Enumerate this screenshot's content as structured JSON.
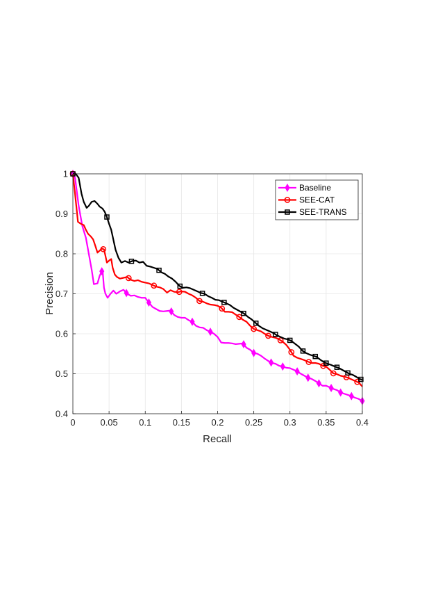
{
  "chart_data": {
    "type": "line",
    "title": "",
    "xlabel": "Recall",
    "ylabel": "Precision",
    "xlim": [
      0,
      0.4
    ],
    "ylim": [
      0.4,
      1
    ],
    "xticks": [
      0,
      0.05,
      0.1,
      0.15,
      0.2,
      0.25,
      0.3,
      0.35,
      0.4
    ],
    "xtick_labels": [
      "0",
      "0.05",
      "0.1",
      "0.15",
      "0.2",
      "0.25",
      "0.3",
      "0.35",
      "0.4"
    ],
    "yticks": [
      0.4,
      0.5,
      0.6,
      0.7,
      0.8,
      0.9,
      1
    ],
    "ytick_labels": [
      "0.4",
      "0.5",
      "0.6",
      "0.7",
      "0.8",
      "0.9",
      "1"
    ],
    "grid": true,
    "legend_position": "top-right",
    "series": [
      {
        "name": "Baseline",
        "color": "#ff00ff",
        "marker": "diamond",
        "points": [
          [
            0,
            1
          ],
          [
            0.003,
            0.99
          ],
          [
            0.008,
            0.92
          ],
          [
            0.013,
            0.87
          ],
          [
            0.018,
            0.84
          ],
          [
            0.022,
            0.8
          ],
          [
            0.026,
            0.76
          ],
          [
            0.029,
            0.724
          ],
          [
            0.034,
            0.726
          ],
          [
            0.037,
            0.745
          ],
          [
            0.041,
            0.76
          ],
          [
            0.043,
            0.715
          ],
          [
            0.045,
            0.7
          ],
          [
            0.048,
            0.69
          ],
          [
            0.052,
            0.7
          ],
          [
            0.056,
            0.708
          ],
          [
            0.06,
            0.7
          ],
          [
            0.065,
            0.706
          ],
          [
            0.07,
            0.71
          ],
          [
            0.075,
            0.7
          ],
          [
            0.08,
            0.695
          ],
          [
            0.085,
            0.696
          ],
          [
            0.09,
            0.692
          ],
          [
            0.095,
            0.69
          ],
          [
            0.1,
            0.69
          ],
          [
            0.105,
            0.678
          ],
          [
            0.11,
            0.667
          ],
          [
            0.115,
            0.662
          ],
          [
            0.12,
            0.657
          ],
          [
            0.125,
            0.656
          ],
          [
            0.13,
            0.657
          ],
          [
            0.135,
            0.658
          ],
          [
            0.14,
            0.647
          ],
          [
            0.145,
            0.642
          ],
          [
            0.15,
            0.64
          ],
          [
            0.155,
            0.64
          ],
          [
            0.16,
            0.634
          ],
          [
            0.165,
            0.63
          ],
          [
            0.17,
            0.62
          ],
          [
            0.175,
            0.616
          ],
          [
            0.18,
            0.615
          ],
          [
            0.185,
            0.609
          ],
          [
            0.19,
            0.605
          ],
          [
            0.195,
            0.6
          ],
          [
            0.2,
            0.592
          ],
          [
            0.205,
            0.578
          ],
          [
            0.21,
            0.577
          ],
          [
            0.215,
            0.577
          ],
          [
            0.22,
            0.576
          ],
          [
            0.225,
            0.574
          ],
          [
            0.23,
            0.575
          ],
          [
            0.235,
            0.576
          ],
          [
            0.24,
            0.565
          ],
          [
            0.245,
            0.56
          ],
          [
            0.25,
            0.552
          ],
          [
            0.255,
            0.55
          ],
          [
            0.26,
            0.545
          ],
          [
            0.265,
            0.538
          ],
          [
            0.27,
            0.532
          ],
          [
            0.275,
            0.527
          ],
          [
            0.28,
            0.525
          ],
          [
            0.285,
            0.52
          ],
          [
            0.29,
            0.518
          ],
          [
            0.295,
            0.515
          ],
          [
            0.3,
            0.514
          ],
          [
            0.305,
            0.51
          ],
          [
            0.31,
            0.506
          ],
          [
            0.315,
            0.5
          ],
          [
            0.32,
            0.495
          ],
          [
            0.325,
            0.49
          ],
          [
            0.33,
            0.487
          ],
          [
            0.335,
            0.482
          ],
          [
            0.34,
            0.476
          ],
          [
            0.345,
            0.47
          ],
          [
            0.35,
            0.47
          ],
          [
            0.355,
            0.466
          ],
          [
            0.36,
            0.462
          ],
          [
            0.365,
            0.459
          ],
          [
            0.37,
            0.453
          ],
          [
            0.375,
            0.45
          ],
          [
            0.38,
            0.447
          ],
          [
            0.385,
            0.444
          ],
          [
            0.39,
            0.44
          ],
          [
            0.395,
            0.437
          ],
          [
            0.4,
            0.432
          ]
        ],
        "markers_x": [
          0,
          0.04,
          0.074,
          0.105,
          0.136,
          0.165,
          0.19,
          0.236,
          0.25,
          0.274,
          0.29,
          0.31,
          0.325,
          0.34,
          0.357,
          0.37,
          0.385,
          0.4
        ]
      },
      {
        "name": "SEE-CAT",
        "color": "#ff0000",
        "marker": "circle",
        "points": [
          [
            0,
            1
          ],
          [
            0.003,
            0.95
          ],
          [
            0.007,
            0.88
          ],
          [
            0.011,
            0.875
          ],
          [
            0.015,
            0.872
          ],
          [
            0.018,
            0.86
          ],
          [
            0.021,
            0.85
          ],
          [
            0.025,
            0.843
          ],
          [
            0.028,
            0.836
          ],
          [
            0.031,
            0.82
          ],
          [
            0.034,
            0.803
          ],
          [
            0.037,
            0.808
          ],
          [
            0.04,
            0.813
          ],
          [
            0.043,
            0.811
          ],
          [
            0.045,
            0.795
          ],
          [
            0.047,
            0.778
          ],
          [
            0.05,
            0.783
          ],
          [
            0.053,
            0.787
          ],
          [
            0.055,
            0.765
          ],
          [
            0.058,
            0.748
          ],
          [
            0.061,
            0.742
          ],
          [
            0.065,
            0.738
          ],
          [
            0.07,
            0.74
          ],
          [
            0.075,
            0.742
          ],
          [
            0.08,
            0.735
          ],
          [
            0.085,
            0.732
          ],
          [
            0.09,
            0.734
          ],
          [
            0.095,
            0.73
          ],
          [
            0.1,
            0.728
          ],
          [
            0.105,
            0.726
          ],
          [
            0.11,
            0.722
          ],
          [
            0.115,
            0.718
          ],
          [
            0.12,
            0.716
          ],
          [
            0.125,
            0.712
          ],
          [
            0.13,
            0.703
          ],
          [
            0.135,
            0.709
          ],
          [
            0.14,
            0.705
          ],
          [
            0.145,
            0.704
          ],
          [
            0.15,
            0.706
          ],
          [
            0.155,
            0.705
          ],
          [
            0.16,
            0.7
          ],
          [
            0.165,
            0.696
          ],
          [
            0.17,
            0.69
          ],
          [
            0.175,
            0.682
          ],
          [
            0.18,
            0.68
          ],
          [
            0.185,
            0.676
          ],
          [
            0.19,
            0.673
          ],
          [
            0.195,
            0.672
          ],
          [
            0.2,
            0.67
          ],
          [
            0.205,
            0.665
          ],
          [
            0.21,
            0.655
          ],
          [
            0.215,
            0.655
          ],
          [
            0.22,
            0.654
          ],
          [
            0.225,
            0.648
          ],
          [
            0.23,
            0.642
          ],
          [
            0.235,
            0.635
          ],
          [
            0.24,
            0.63
          ],
          [
            0.245,
            0.62
          ],
          [
            0.25,
            0.612
          ],
          [
            0.255,
            0.609
          ],
          [
            0.26,
            0.606
          ],
          [
            0.265,
            0.6
          ],
          [
            0.27,
            0.595
          ],
          [
            0.275,
            0.592
          ],
          [
            0.28,
            0.59
          ],
          [
            0.285,
            0.586
          ],
          [
            0.29,
            0.58
          ],
          [
            0.295,
            0.572
          ],
          [
            0.3,
            0.56
          ],
          [
            0.305,
            0.545
          ],
          [
            0.31,
            0.54
          ],
          [
            0.315,
            0.537
          ],
          [
            0.32,
            0.534
          ],
          [
            0.325,
            0.53
          ],
          [
            0.33,
            0.527
          ],
          [
            0.335,
            0.527
          ],
          [
            0.34,
            0.525
          ],
          [
            0.345,
            0.52
          ],
          [
            0.35,
            0.518
          ],
          [
            0.355,
            0.51
          ],
          [
            0.36,
            0.501
          ],
          [
            0.365,
            0.499
          ],
          [
            0.37,
            0.495
          ],
          [
            0.375,
            0.493
          ],
          [
            0.38,
            0.49
          ],
          [
            0.385,
            0.486
          ],
          [
            0.39,
            0.482
          ],
          [
            0.395,
            0.478
          ],
          [
            0.4,
            0.468
          ]
        ],
        "markers_x": [
          0,
          0.042,
          0.077,
          0.112,
          0.147,
          0.175,
          0.206,
          0.23,
          0.25,
          0.27,
          0.287,
          0.302,
          0.326,
          0.346,
          0.36,
          0.378,
          0.393
        ]
      },
      {
        "name": "SEE-TRANS",
        "color": "#000000",
        "marker": "square",
        "points": [
          [
            0,
            1
          ],
          [
            0.004,
            1
          ],
          [
            0.008,
            0.99
          ],
          [
            0.012,
            0.95
          ],
          [
            0.015,
            0.93
          ],
          [
            0.019,
            0.915
          ],
          [
            0.022,
            0.92
          ],
          [
            0.026,
            0.93
          ],
          [
            0.03,
            0.932
          ],
          [
            0.034,
            0.925
          ],
          [
            0.037,
            0.918
          ],
          [
            0.041,
            0.913
          ],
          [
            0.044,
            0.905
          ],
          [
            0.047,
            0.892
          ],
          [
            0.05,
            0.875
          ],
          [
            0.053,
            0.86
          ],
          [
            0.056,
            0.835
          ],
          [
            0.059,
            0.81
          ],
          [
            0.063,
            0.79
          ],
          [
            0.067,
            0.778
          ],
          [
            0.072,
            0.782
          ],
          [
            0.077,
            0.778
          ],
          [
            0.082,
            0.782
          ],
          [
            0.087,
            0.783
          ],
          [
            0.092,
            0.778
          ],
          [
            0.097,
            0.78
          ],
          [
            0.102,
            0.77
          ],
          [
            0.107,
            0.768
          ],
          [
            0.112,
            0.765
          ],
          [
            0.117,
            0.762
          ],
          [
            0.122,
            0.754
          ],
          [
            0.127,
            0.75
          ],
          [
            0.132,
            0.743
          ],
          [
            0.137,
            0.738
          ],
          [
            0.142,
            0.73
          ],
          [
            0.147,
            0.72
          ],
          [
            0.152,
            0.715
          ],
          [
            0.157,
            0.716
          ],
          [
            0.162,
            0.714
          ],
          [
            0.167,
            0.71
          ],
          [
            0.172,
            0.706
          ],
          [
            0.177,
            0.702
          ],
          [
            0.182,
            0.7
          ],
          [
            0.187,
            0.694
          ],
          [
            0.192,
            0.69
          ],
          [
            0.197,
            0.685
          ],
          [
            0.202,
            0.684
          ],
          [
            0.207,
            0.68
          ],
          [
            0.212,
            0.676
          ],
          [
            0.217,
            0.672
          ],
          [
            0.222,
            0.665
          ],
          [
            0.227,
            0.66
          ],
          [
            0.232,
            0.655
          ],
          [
            0.237,
            0.65
          ],
          [
            0.242,
            0.642
          ],
          [
            0.247,
            0.636
          ],
          [
            0.252,
            0.628
          ],
          [
            0.257,
            0.62
          ],
          [
            0.262,
            0.614
          ],
          [
            0.267,
            0.61
          ],
          [
            0.272,
            0.606
          ],
          [
            0.277,
            0.602
          ],
          [
            0.282,
            0.596
          ],
          [
            0.287,
            0.592
          ],
          [
            0.292,
            0.588
          ],
          [
            0.297,
            0.586
          ],
          [
            0.302,
            0.582
          ],
          [
            0.307,
            0.575
          ],
          [
            0.312,
            0.568
          ],
          [
            0.317,
            0.558
          ],
          [
            0.322,
            0.552
          ],
          [
            0.327,
            0.548
          ],
          [
            0.332,
            0.545
          ],
          [
            0.337,
            0.542
          ],
          [
            0.342,
            0.535
          ],
          [
            0.347,
            0.529
          ],
          [
            0.352,
            0.525
          ],
          [
            0.357,
            0.522
          ],
          [
            0.362,
            0.518
          ],
          [
            0.367,
            0.515
          ],
          [
            0.372,
            0.51
          ],
          [
            0.377,
            0.505
          ],
          [
            0.382,
            0.5
          ],
          [
            0.387,
            0.497
          ],
          [
            0.392,
            0.492
          ],
          [
            0.396,
            0.487
          ],
          [
            0.4,
            0.485
          ]
        ],
        "markers_x": [
          0,
          0.047,
          0.081,
          0.119,
          0.148,
          0.179,
          0.209,
          0.236,
          0.253,
          0.28,
          0.3,
          0.318,
          0.335,
          0.35,
          0.365,
          0.38,
          0.398
        ]
      }
    ]
  }
}
